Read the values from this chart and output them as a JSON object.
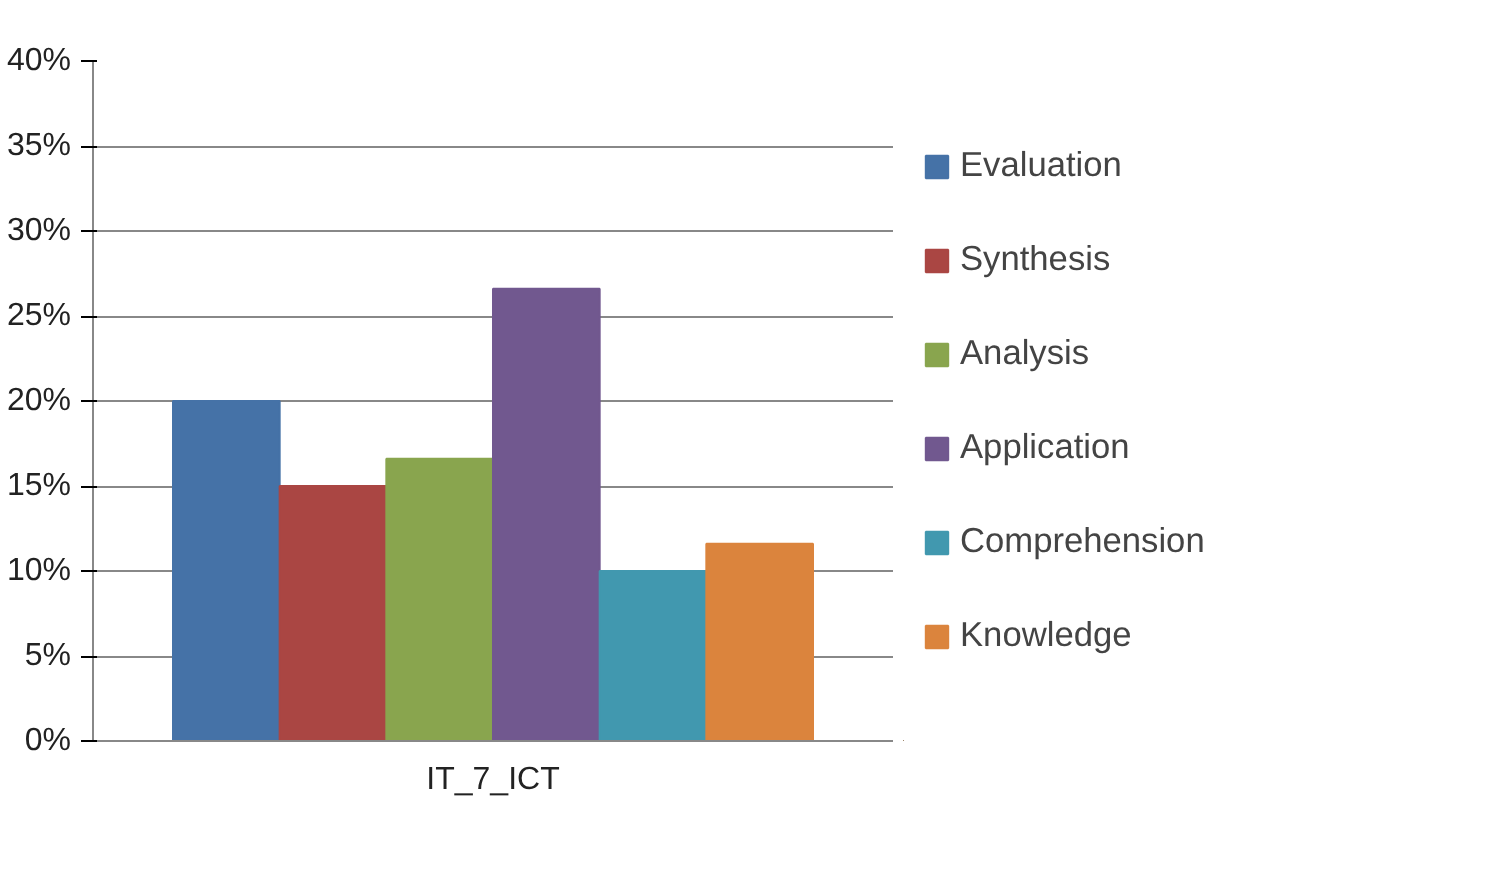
{
  "chart_data": {
    "type": "bar",
    "categories": [
      "IT_7_ICT"
    ],
    "series": [
      {
        "name": "Evaluation",
        "color": "#4572a7",
        "values": [
          20
        ]
      },
      {
        "name": "Synthesis",
        "color": "#aa4643",
        "values": [
          15
        ]
      },
      {
        "name": "Analysis",
        "color": "#89a54e",
        "values": [
          16.6
        ]
      },
      {
        "name": "Application",
        "color": "#71588f",
        "values": [
          26.6
        ]
      },
      {
        "name": "Comprehension",
        "color": "#4198af",
        "values": [
          10
        ]
      },
      {
        "name": "Knowledge",
        "color": "#db843d",
        "values": [
          11.6
        ]
      }
    ],
    "ylim": [
      0,
      40
    ],
    "yticks": [
      {
        "value": 0,
        "label": "0%"
      },
      {
        "value": 5,
        "label": "5%"
      },
      {
        "value": 10,
        "label": "10%"
      },
      {
        "value": 15,
        "label": "15%"
      },
      {
        "value": 20,
        "label": "20%"
      },
      {
        "value": 25,
        "label": "25%"
      },
      {
        "value": 30,
        "label": "30%"
      },
      {
        "value": 35,
        "label": "35%"
      },
      {
        "value": 40,
        "label": "40%"
      }
    ],
    "grid": "y",
    "legend": "right"
  }
}
